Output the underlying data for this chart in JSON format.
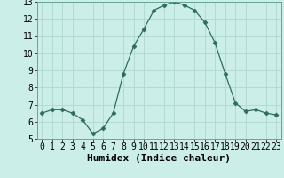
{
  "x": [
    0,
    1,
    2,
    3,
    4,
    5,
    6,
    7,
    8,
    9,
    10,
    11,
    12,
    13,
    14,
    15,
    16,
    17,
    18,
    19,
    20,
    21,
    22,
    23
  ],
  "y": [
    6.5,
    6.7,
    6.7,
    6.5,
    6.1,
    5.3,
    5.6,
    6.5,
    8.8,
    10.4,
    11.4,
    12.5,
    12.8,
    13.0,
    12.8,
    12.5,
    11.8,
    10.6,
    8.8,
    7.1,
    6.6,
    6.7,
    6.5,
    6.4
  ],
  "xlabel": "Humidex (Indice chaleur)",
  "xlim": [
    -0.5,
    23.5
  ],
  "ylim": [
    5,
    13
  ],
  "yticks": [
    5,
    6,
    7,
    8,
    9,
    10,
    11,
    12,
    13
  ],
  "xticks": [
    0,
    1,
    2,
    3,
    4,
    5,
    6,
    7,
    8,
    9,
    10,
    11,
    12,
    13,
    14,
    15,
    16,
    17,
    18,
    19,
    20,
    21,
    22,
    23
  ],
  "line_color": "#2e6b5e",
  "marker": "D",
  "marker_size": 2.5,
  "bg_color": "#cceee8",
  "grid_color": "#b0d8d0",
  "xlabel_fontsize": 8,
  "tick_fontsize": 7
}
